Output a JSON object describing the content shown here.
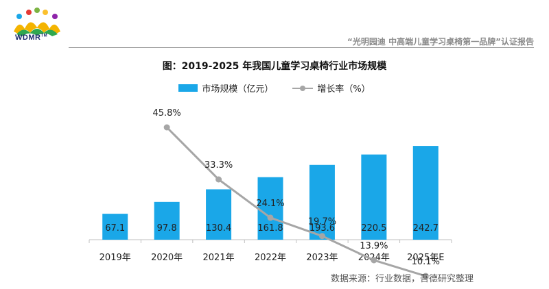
{
  "header": {
    "logo_text": "WDMR",
    "logo_trademark": "TM",
    "report_title": "“光明园迪  中高端儿童学习桌椅第一品牌”认证报告"
  },
  "legend": {
    "bar_label": "市场规模（亿元）",
    "line_label": "增长率（%）"
  },
  "source": "数据来源：行业数据，吾德研究整理",
  "colors": {
    "bar": "#1aa7e8",
    "line": "#a6a6a6",
    "axis": "#bfbfbf"
  },
  "chart_data": {
    "type": "bar",
    "title": "图：2019-2025 年我国儿童学习桌椅行业市场规模",
    "categories": [
      "2019年",
      "2020年",
      "2021年",
      "2022年",
      "2023年",
      "2024年",
      "2025年E"
    ],
    "series": [
      {
        "name": "市场规模（亿元）",
        "type": "bar",
        "values": [
          67.1,
          97.8,
          130.4,
          161.8,
          193.6,
          220.5,
          242.7
        ],
        "labels": [
          "67.1",
          "97.8",
          "130.4",
          "161.8",
          "193.6",
          "220.5",
          "242.7"
        ]
      },
      {
        "name": "增长率（%）",
        "type": "line",
        "values": [
          null,
          45.8,
          33.3,
          24.1,
          19.7,
          13.9,
          10.1
        ],
        "labels": [
          "",
          "45.8%",
          "33.3%",
          "24.1%",
          "19.7%",
          "13.9%",
          "10.1%"
        ]
      }
    ],
    "ylim_bar": [
      0,
      250
    ],
    "ylim_line": [
      0,
      60
    ],
    "grid": false
  }
}
